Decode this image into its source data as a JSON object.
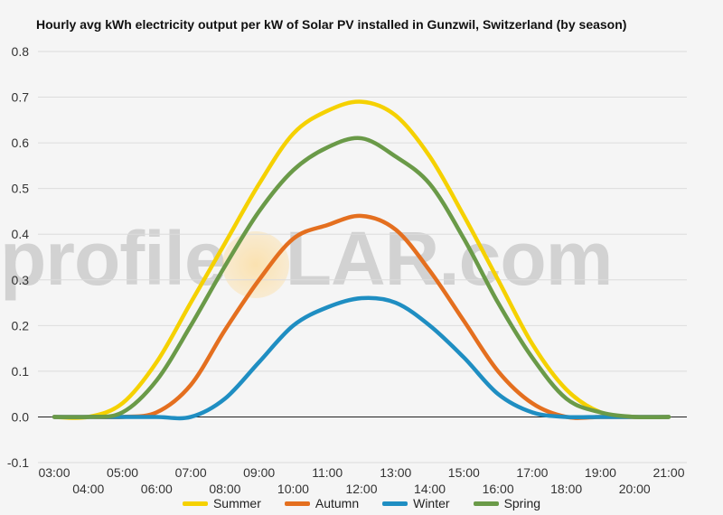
{
  "chart_data": {
    "type": "line",
    "title": "Hourly avg kWh electricity output per kW of Solar PV installed in Gunzwil, Switzerland (by season)",
    "x": [
      "03:00",
      "04:00",
      "05:00",
      "06:00",
      "07:00",
      "08:00",
      "09:00",
      "10:00",
      "11:00",
      "12:00",
      "13:00",
      "14:00",
      "15:00",
      "16:00",
      "17:00",
      "18:00",
      "19:00",
      "20:00",
      "21:00"
    ],
    "ylim": [
      -0.1,
      0.8
    ],
    "yticks": [
      "0.8",
      "0.7",
      "0.6",
      "0.5",
      "0.4",
      "0.3",
      "0.2",
      "0.1",
      "0.0",
      "-0.1"
    ],
    "grid": true,
    "legend_position": "bottom",
    "series": [
      {
        "name": "Summer",
        "color": "#f5d100",
        "values": [
          0.0,
          0.0,
          0.03,
          0.12,
          0.25,
          0.38,
          0.51,
          0.62,
          0.67,
          0.69,
          0.66,
          0.57,
          0.44,
          0.3,
          0.16,
          0.06,
          0.01,
          0.0,
          0.0
        ]
      },
      {
        "name": "Autumn",
        "color": "#e46f1f",
        "values": [
          0.0,
          0.0,
          0.0,
          0.01,
          0.07,
          0.19,
          0.3,
          0.39,
          0.42,
          0.44,
          0.41,
          0.32,
          0.21,
          0.1,
          0.03,
          0.0,
          0.0,
          0.0,
          0.0
        ]
      },
      {
        "name": "Winter",
        "color": "#1f8ec2",
        "values": [
          0.0,
          0.0,
          0.0,
          0.0,
          0.0,
          0.04,
          0.12,
          0.2,
          0.24,
          0.26,
          0.25,
          0.2,
          0.13,
          0.05,
          0.01,
          0.0,
          0.0,
          0.0,
          0.0
        ]
      },
      {
        "name": "Spring",
        "color": "#6a9a48",
        "values": [
          0.0,
          0.0,
          0.01,
          0.08,
          0.2,
          0.33,
          0.45,
          0.54,
          0.59,
          0.61,
          0.57,
          0.51,
          0.39,
          0.25,
          0.13,
          0.04,
          0.01,
          0.0,
          0.0
        ]
      }
    ]
  },
  "watermark": {
    "pre": "profile",
    "post": "LAR.com"
  }
}
